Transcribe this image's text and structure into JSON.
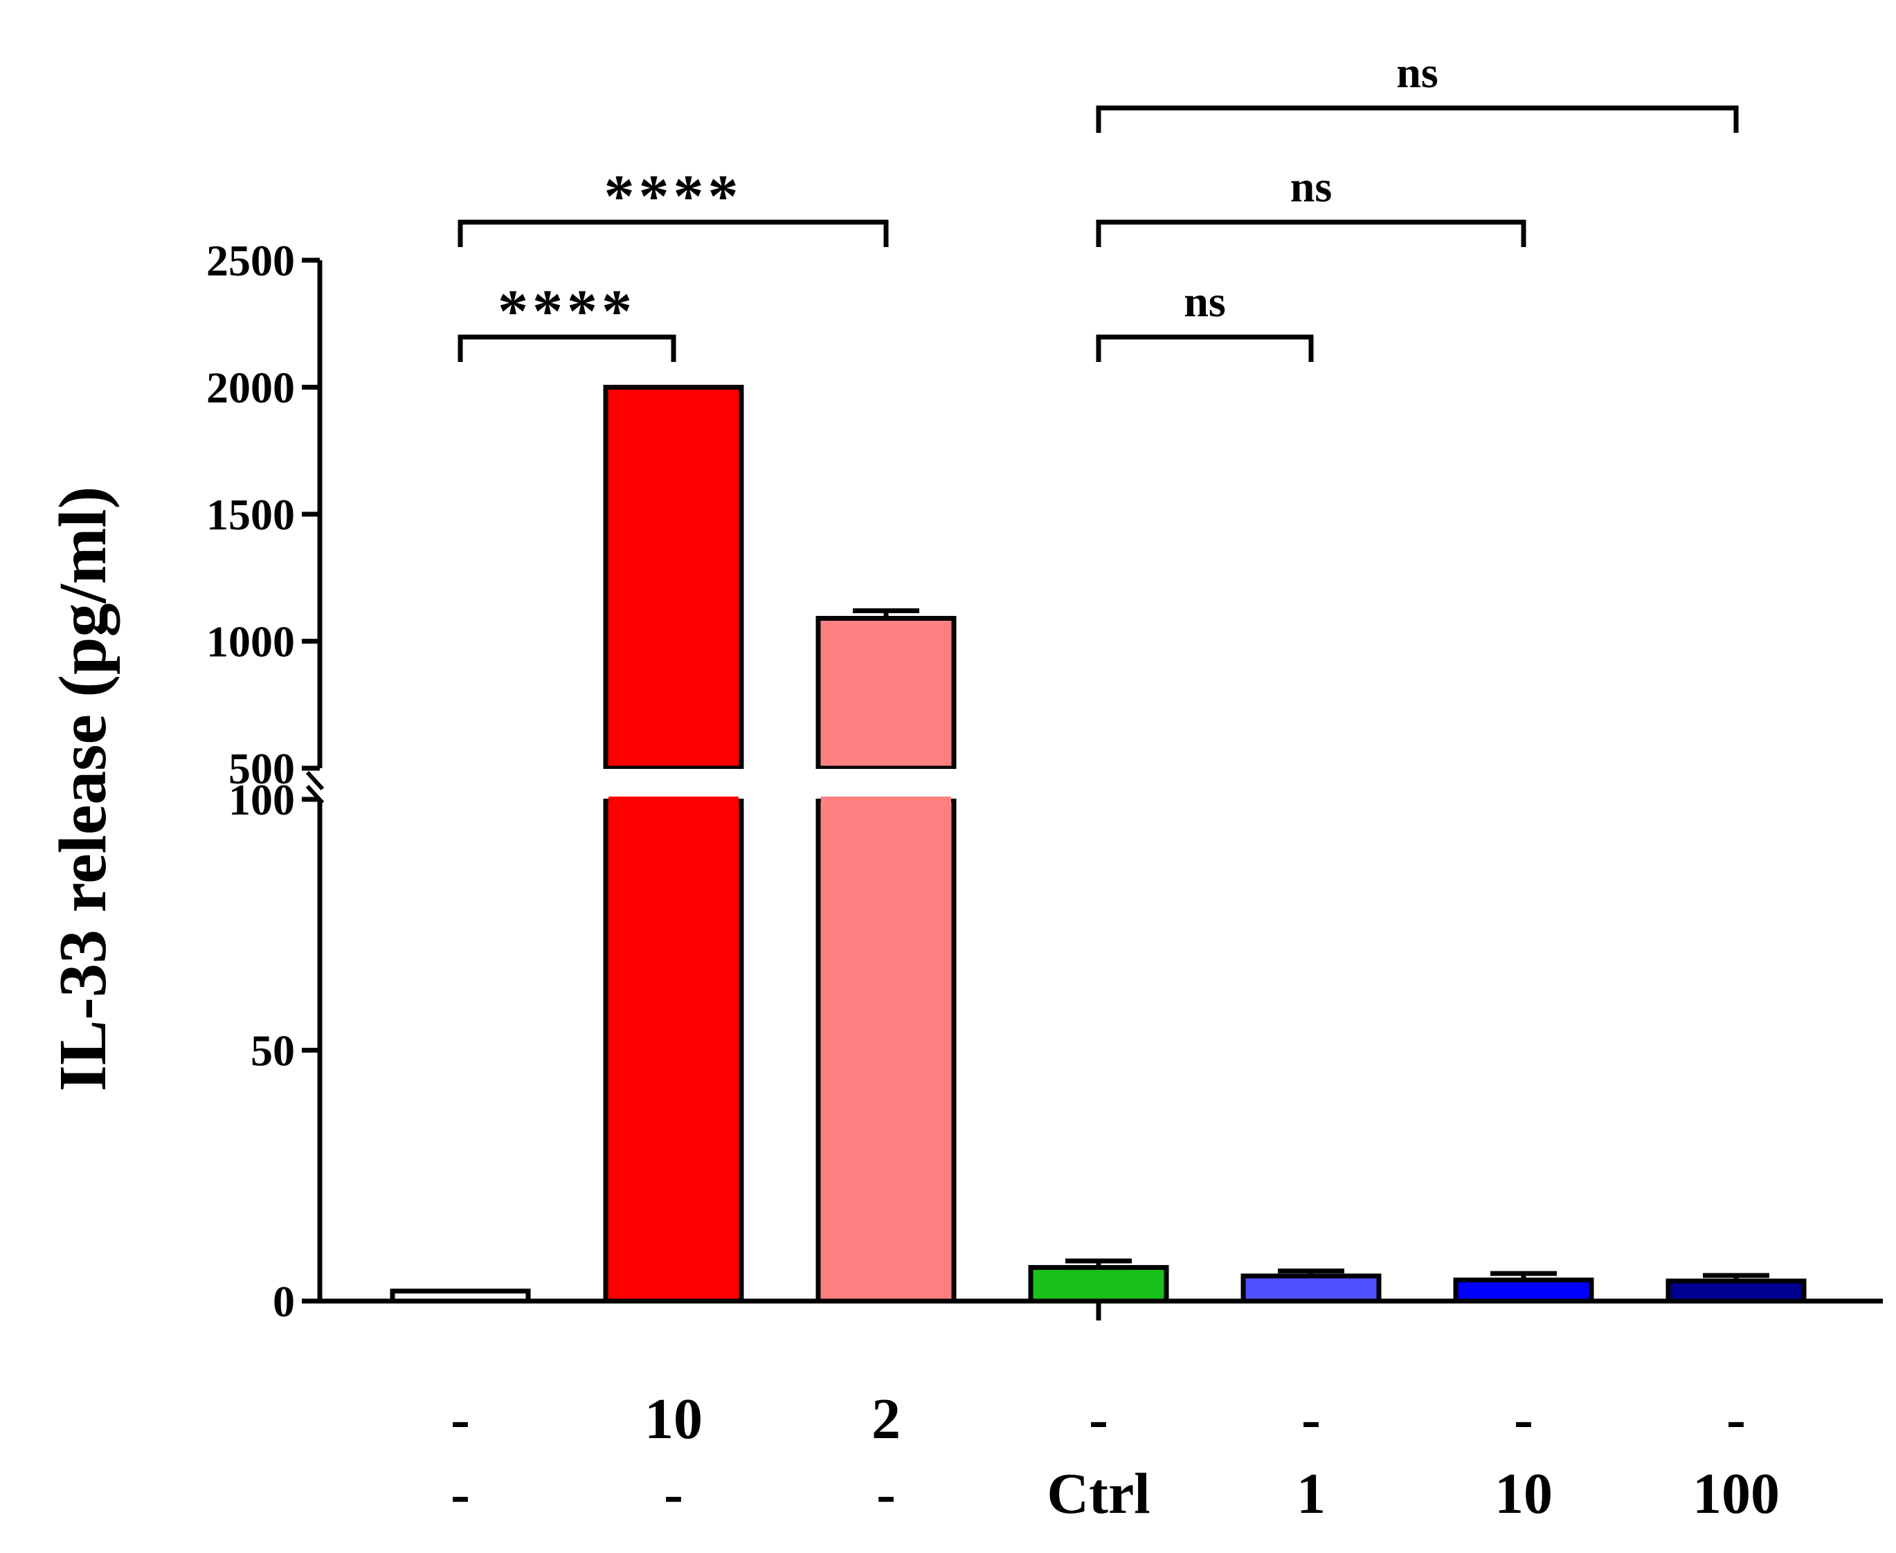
{
  "chart_data": {
    "type": "bar",
    "ylabel": "IL-33 release (pg/ml)",
    "axis_break": {
      "lower_max": 100,
      "upper_min": 500
    },
    "ylim_lower": [
      0,
      100
    ],
    "ylim_upper": [
      500,
      2500
    ],
    "yticks_lower": [
      "0",
      "50",
      "100"
    ],
    "yticks_upper": [
      "500",
      "1000",
      "1500",
      "2000",
      "2500"
    ],
    "x_row1": [
      "-",
      "10",
      "2",
      "-",
      "-",
      "-",
      "-"
    ],
    "x_row2": [
      "-",
      "-",
      "-",
      "Ctrl",
      "1",
      "10",
      "100"
    ],
    "bars": [
      {
        "value": 2,
        "error": 0,
        "color": "#ffffff"
      },
      {
        "value": 2000,
        "error": 0,
        "color": "#ff0000"
      },
      {
        "value": 1090,
        "error": 30,
        "color": "#ff8080"
      },
      {
        "value": 6.7,
        "error": 1.3,
        "color": "#17c117"
      },
      {
        "value": 5.0,
        "error": 1.0,
        "color": "#5050ff"
      },
      {
        "value": 4.2,
        "error": 1.3,
        "color": "#0000ff"
      },
      {
        "value": 4.0,
        "error": 1.1,
        "color": "#000090"
      }
    ],
    "significance": [
      {
        "from": 0,
        "to": 1,
        "label": "****"
      },
      {
        "from": 0,
        "to": 2,
        "label": "****"
      },
      {
        "from": 3,
        "to": 4,
        "label": "ns"
      },
      {
        "from": 3,
        "to": 5,
        "label": "ns"
      },
      {
        "from": 3,
        "to": 6,
        "label": "ns"
      }
    ]
  }
}
